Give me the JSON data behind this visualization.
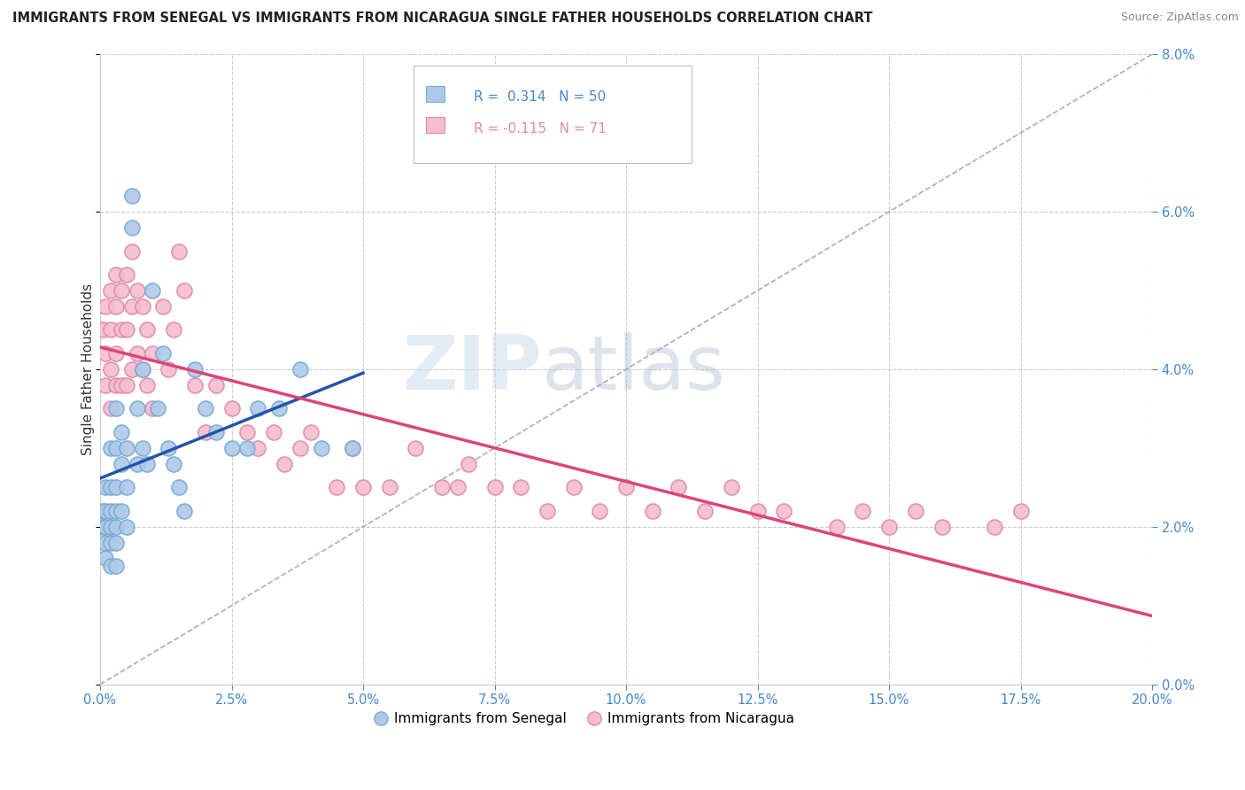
{
  "title": "IMMIGRANTS FROM SENEGAL VS IMMIGRANTS FROM NICARAGUA SINGLE FATHER HOUSEHOLDS CORRELATION CHART",
  "source": "Source: ZipAtlas.com",
  "ylabel": "Single Father Households",
  "xlim": [
    0.0,
    0.2
  ],
  "ylim": [
    0.0,
    0.08
  ],
  "xticks": [
    0.0,
    0.025,
    0.05,
    0.075,
    0.1,
    0.125,
    0.15,
    0.175,
    0.2
  ],
  "yticks": [
    0.0,
    0.02,
    0.04,
    0.06,
    0.08
  ],
  "senegal_color": "#aec9e8",
  "senegal_edge": "#7aaad4",
  "nicaragua_color": "#f5bdd0",
  "nicaragua_edge": "#e08aaa",
  "senegal_line_color": "#2255aa",
  "nicaragua_line_color": "#dd4477",
  "diagonal_color": "#aaaacc",
  "R_senegal": 0.314,
  "N_senegal": 50,
  "R_nicaragua": -0.115,
  "N_nicaragua": 71,
  "legend_label_senegal": "Immigrants from Senegal",
  "legend_label_nicaragua": "Immigrants from Nicaragua",
  "watermark_zip": "ZIP",
  "watermark_atlas": "atlas",
  "tick_color": "#4488cc",
  "senegal_x": [
    0.0005,
    0.0005,
    0.001,
    0.001,
    0.001,
    0.001,
    0.001,
    0.002,
    0.002,
    0.002,
    0.002,
    0.002,
    0.002,
    0.003,
    0.003,
    0.003,
    0.003,
    0.003,
    0.003,
    0.003,
    0.004,
    0.004,
    0.004,
    0.005,
    0.005,
    0.005,
    0.006,
    0.006,
    0.007,
    0.007,
    0.008,
    0.008,
    0.009,
    0.01,
    0.011,
    0.012,
    0.013,
    0.014,
    0.015,
    0.016,
    0.018,
    0.02,
    0.022,
    0.025,
    0.028,
    0.03,
    0.034,
    0.038,
    0.042,
    0.048
  ],
  "senegal_y": [
    0.022,
    0.02,
    0.025,
    0.022,
    0.02,
    0.018,
    0.016,
    0.03,
    0.025,
    0.022,
    0.02,
    0.018,
    0.015,
    0.035,
    0.03,
    0.025,
    0.022,
    0.02,
    0.018,
    0.015,
    0.032,
    0.028,
    0.022,
    0.03,
    0.025,
    0.02,
    0.062,
    0.058,
    0.035,
    0.028,
    0.04,
    0.03,
    0.028,
    0.05,
    0.035,
    0.042,
    0.03,
    0.028,
    0.025,
    0.022,
    0.04,
    0.035,
    0.032,
    0.03,
    0.03,
    0.035,
    0.035,
    0.04,
    0.03,
    0.03
  ],
  "nicaragua_x": [
    0.0005,
    0.001,
    0.001,
    0.001,
    0.002,
    0.002,
    0.002,
    0.002,
    0.003,
    0.003,
    0.003,
    0.003,
    0.004,
    0.004,
    0.004,
    0.005,
    0.005,
    0.005,
    0.006,
    0.006,
    0.006,
    0.007,
    0.007,
    0.008,
    0.008,
    0.009,
    0.009,
    0.01,
    0.01,
    0.012,
    0.013,
    0.014,
    0.015,
    0.016,
    0.018,
    0.02,
    0.022,
    0.025,
    0.028,
    0.03,
    0.033,
    0.035,
    0.038,
    0.04,
    0.045,
    0.048,
    0.05,
    0.055,
    0.06,
    0.065,
    0.068,
    0.07,
    0.075,
    0.08,
    0.085,
    0.09,
    0.095,
    0.1,
    0.105,
    0.11,
    0.115,
    0.12,
    0.125,
    0.13,
    0.14,
    0.145,
    0.15,
    0.155,
    0.16,
    0.17,
    0.175
  ],
  "nicaragua_y": [
    0.045,
    0.048,
    0.042,
    0.038,
    0.05,
    0.045,
    0.04,
    0.035,
    0.052,
    0.048,
    0.042,
    0.038,
    0.05,
    0.045,
    0.038,
    0.052,
    0.045,
    0.038,
    0.055,
    0.048,
    0.04,
    0.05,
    0.042,
    0.048,
    0.04,
    0.045,
    0.038,
    0.042,
    0.035,
    0.048,
    0.04,
    0.045,
    0.055,
    0.05,
    0.038,
    0.032,
    0.038,
    0.035,
    0.032,
    0.03,
    0.032,
    0.028,
    0.03,
    0.032,
    0.025,
    0.03,
    0.025,
    0.025,
    0.03,
    0.025,
    0.025,
    0.028,
    0.025,
    0.025,
    0.022,
    0.025,
    0.022,
    0.025,
    0.022,
    0.025,
    0.022,
    0.025,
    0.022,
    0.022,
    0.02,
    0.022,
    0.02,
    0.022,
    0.02,
    0.02,
    0.022
  ]
}
